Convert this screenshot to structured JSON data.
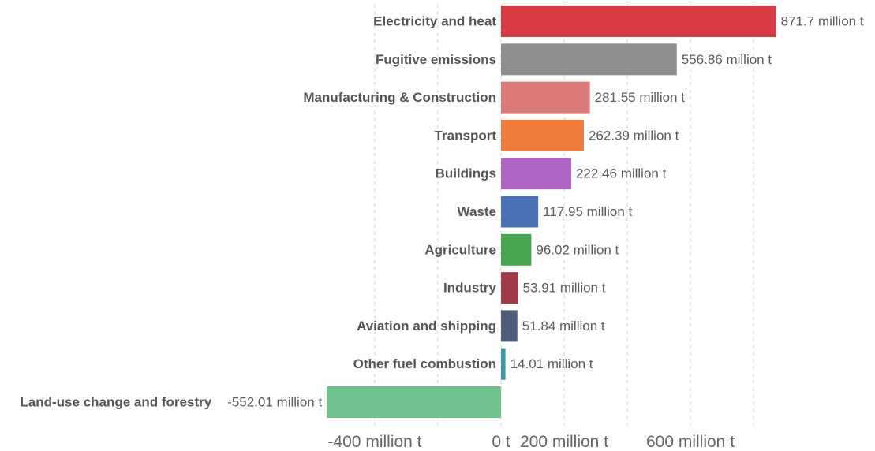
{
  "chart_data": {
    "type": "bar",
    "orientation": "horizontal",
    "unit_suffix": " million t",
    "categories": [
      "Electricity and heat",
      "Fugitive emissions",
      "Manufacturing & Construction",
      "Transport",
      "Buildings",
      "Waste",
      "Agriculture",
      "Industry",
      "Aviation and shipping",
      "Other fuel combustion",
      "Land-use change and forestry"
    ],
    "values": [
      871.7,
      556.86,
      281.55,
      262.39,
      222.46,
      117.95,
      96.02,
      53.91,
      51.84,
      14.01,
      -552.01
    ],
    "value_labels": [
      "871.7 million t",
      "556.86 million t",
      "281.55 million t",
      "262.39 million t",
      "222.46 million t",
      "117.95 million t",
      "96.02 million t",
      "53.91 million t",
      "51.84 million t",
      "14.01 million t",
      "-552.01 million t"
    ],
    "colors": [
      "#d73c45",
      "#8f8f8f",
      "#dc7b77",
      "#f07c3c",
      "#b065c5",
      "#4a72b5",
      "#45a64f",
      "#a33a47",
      "#4d5d7a",
      "#3a9aa6",
      "#6fc28b"
    ],
    "xlim": [
      -552.01,
      871.7
    ],
    "gridlines": [
      -400,
      -200,
      0,
      200,
      400,
      600,
      800
    ],
    "ticks": [
      {
        "value": -400,
        "label": "-400 million t"
      },
      {
        "value": 0,
        "label": "0 t"
      },
      {
        "value": 200,
        "label": "200 million t"
      },
      {
        "value": 600,
        "label": "600 million t"
      }
    ],
    "grid": true,
    "legend": "none"
  }
}
